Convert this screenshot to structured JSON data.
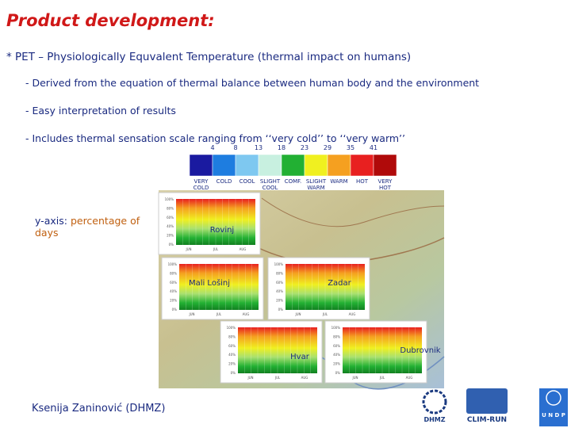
{
  "title": "Product development:",
  "bullet": "* PET – Physiologically Equvalent Temperature (thermal impact on humans)",
  "sub_bullets": [
    "- Derived from the equation of thermal balance between human body and the environment",
    "- Easy interpretation of results",
    "- Includes thermal sensation scale ranging from ‘‘very cold’’ to ‘‘very warm’’"
  ],
  "scale": {
    "thresholds": [
      "4",
      "8",
      "13",
      "18",
      "23",
      "29",
      "35",
      "41"
    ],
    "labels": [
      [
        "VERY",
        "COLD"
      ],
      [
        "COLD"
      ],
      [
        "COOL"
      ],
      [
        "SLIGHT",
        "COOL"
      ],
      [
        "COMF."
      ],
      [
        "SLIGHT",
        "WARM"
      ],
      [
        "WARM"
      ],
      [
        "HOT"
      ],
      [
        "VERY",
        "HOT"
      ]
    ],
    "colors": [
      "#1a1aa0",
      "#1e7de0",
      "#7ec8f0",
      "#c8f0e0",
      "#22b033",
      "#f0f020",
      "#f5a020",
      "#e82020",
      "#b00a0a"
    ]
  },
  "y_axis_note": {
    "key": "y-axis:",
    "text": "percentage of days"
  },
  "mini_chart": {
    "ticks": [
      "100%",
      "80%",
      "60%",
      "40%",
      "20%",
      "0%"
    ],
    "months": [
      "JUN",
      "JUL",
      "AUG"
    ]
  },
  "stations": [
    "Rovinj",
    "Mali Lošinj",
    "Zadar",
    "Hvar",
    "Dubrovnik"
  ],
  "author": "Ksenija Zaninović (DHMZ)",
  "logos": [
    "DHMZ",
    "CLIM-RUN",
    "U N D P"
  ]
}
